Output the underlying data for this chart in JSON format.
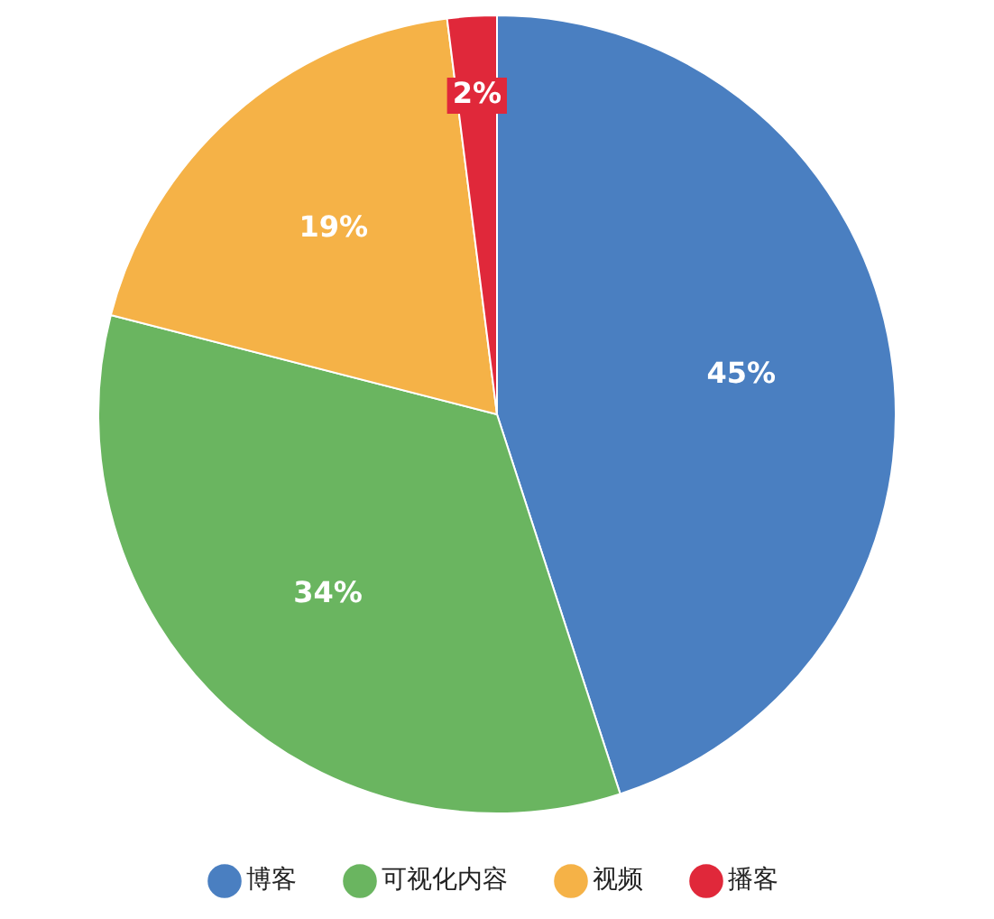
{
  "chart_data": {
    "type": "pie",
    "categories": [
      "博客",
      "可视化内容",
      "视频",
      "播客"
    ],
    "values": [
      45,
      34,
      19,
      2
    ],
    "colors": [
      "#4a7fc1",
      "#6ab560",
      "#f5b247",
      "#e0283a"
    ],
    "value_labels": [
      "45%",
      "34%",
      "19%",
      "2%"
    ],
    "legend": "bottom"
  }
}
